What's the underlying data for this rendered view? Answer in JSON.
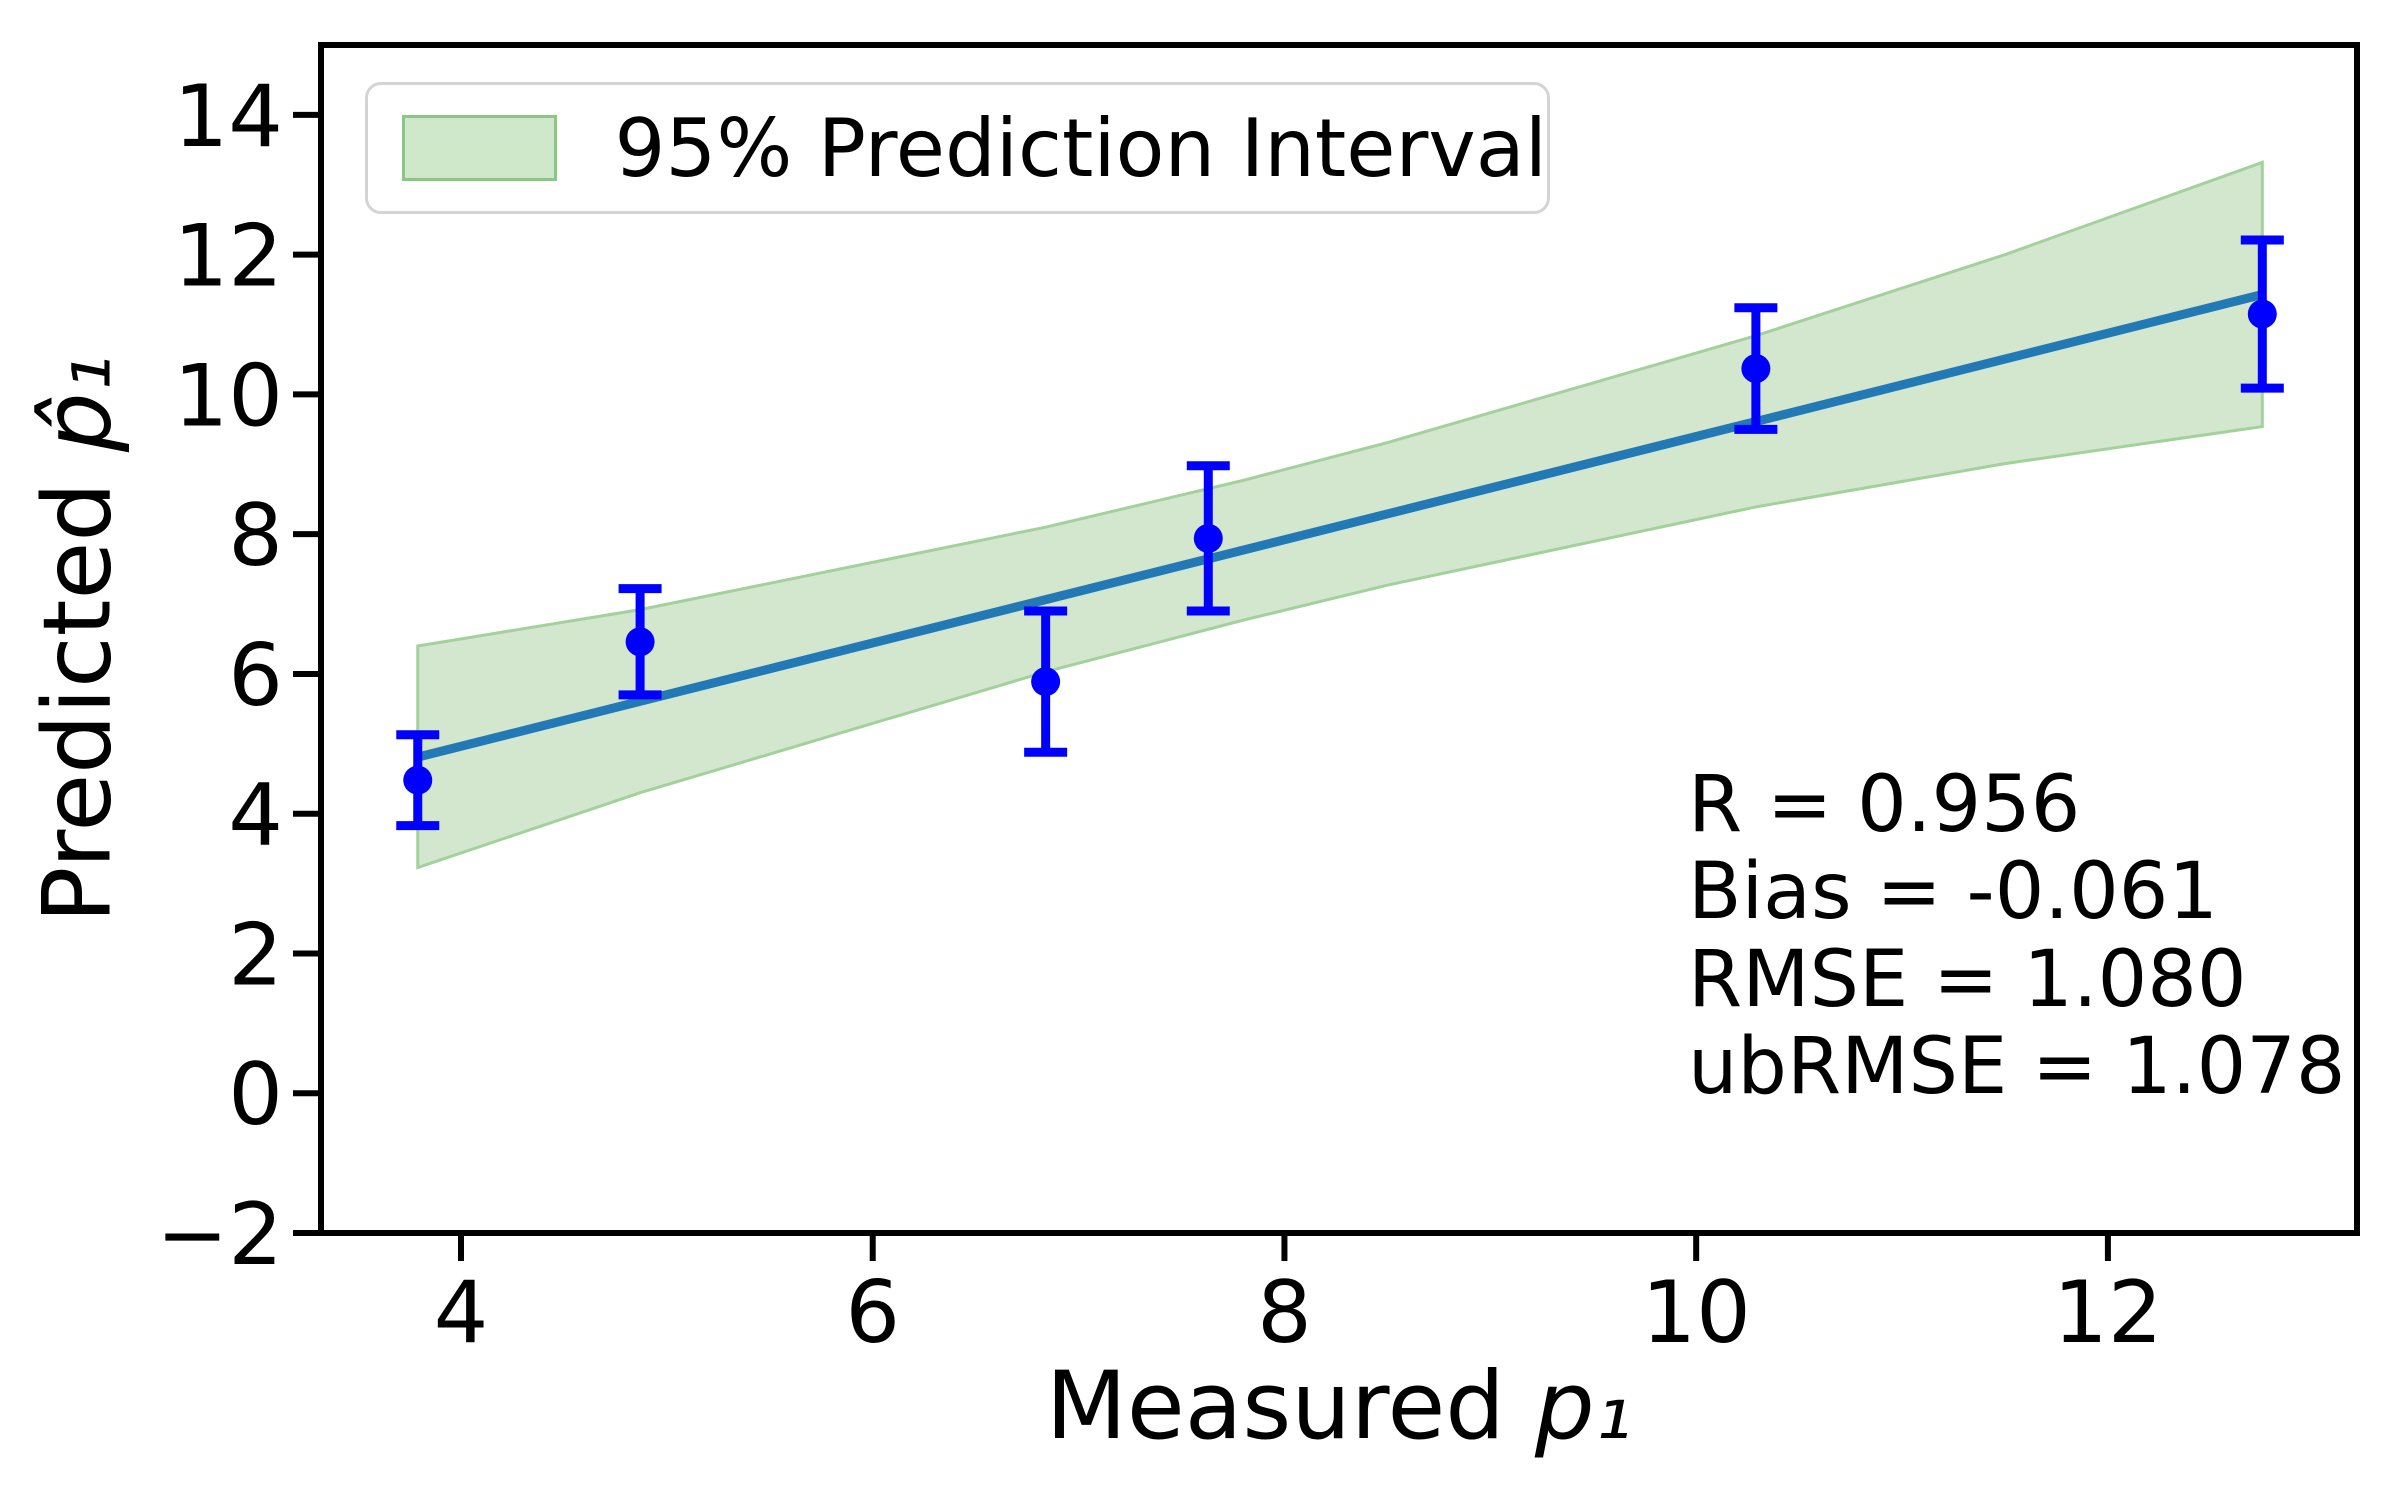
{
  "chart_data": {
    "type": "scatter",
    "title": "",
    "xlabel_prefix": "Measured ",
    "xlabel_var": "p₁",
    "ylabel_prefix": "Predicted ",
    "ylabel_var": "p̂₁",
    "xlim": [
      3.32,
      13.21
    ],
    "ylim": [
      -2,
      15
    ],
    "xtick_values": [
      4,
      6,
      8,
      10,
      12
    ],
    "xtick_labels": [
      "4",
      "6",
      "8",
      "10",
      "12"
    ],
    "ytick_values": [
      -2,
      0,
      2,
      4,
      6,
      8,
      10,
      12,
      14
    ],
    "ytick_labels": [
      "−2",
      "0",
      "2",
      "4",
      "6",
      "8",
      "10",
      "12",
      "14"
    ],
    "grid": false,
    "legend": {
      "label": "95% Prediction Interval",
      "position": "upper-left"
    },
    "points": [
      {
        "x": 3.79,
        "y": 4.48,
        "yerr": 0.65
      },
      {
        "x": 4.87,
        "y": 6.46,
        "yerr": 0.76
      },
      {
        "x": 6.84,
        "y": 5.89,
        "yerr": 1.01
      },
      {
        "x": 7.63,
        "y": 7.94,
        "yerr": 1.04
      },
      {
        "x": 10.29,
        "y": 10.37,
        "yerr": 0.87
      },
      {
        "x": 12.75,
        "y": 11.15,
        "yerr": 1.06
      }
    ],
    "fit_line": {
      "slope": 0.7388,
      "intercept": 2.01,
      "x_start": 3.79,
      "x_end": 12.75
    },
    "prediction_band": {
      "x": [
        3.79,
        4.87,
        6.84,
        7.8,
        8.5,
        10.29,
        11.5,
        12.75
      ],
      "top": [
        6.4,
        6.92,
        8.1,
        8.77,
        9.31,
        10.84,
        12.0,
        13.32
      ],
      "bottom": [
        3.23,
        4.3,
        6.03,
        6.77,
        7.27,
        8.39,
        9.01,
        9.54
      ]
    },
    "stats": {
      "lines": [
        "R = 0.956",
        "Bias = -0.061",
        "RMSE = 1.080",
        "ubRMSE = 1.078"
      ]
    },
    "colors": {
      "band_fill": "#d3e7cf",
      "band_edge": "#a3d19b",
      "fit_line": "#2279b5",
      "marker": "#0000ff",
      "error_bar": "#0000ff",
      "axis": "#000000",
      "legend_swatch_fill": "#cfe8ca",
      "legend_swatch_edge": "#8cc684"
    }
  }
}
